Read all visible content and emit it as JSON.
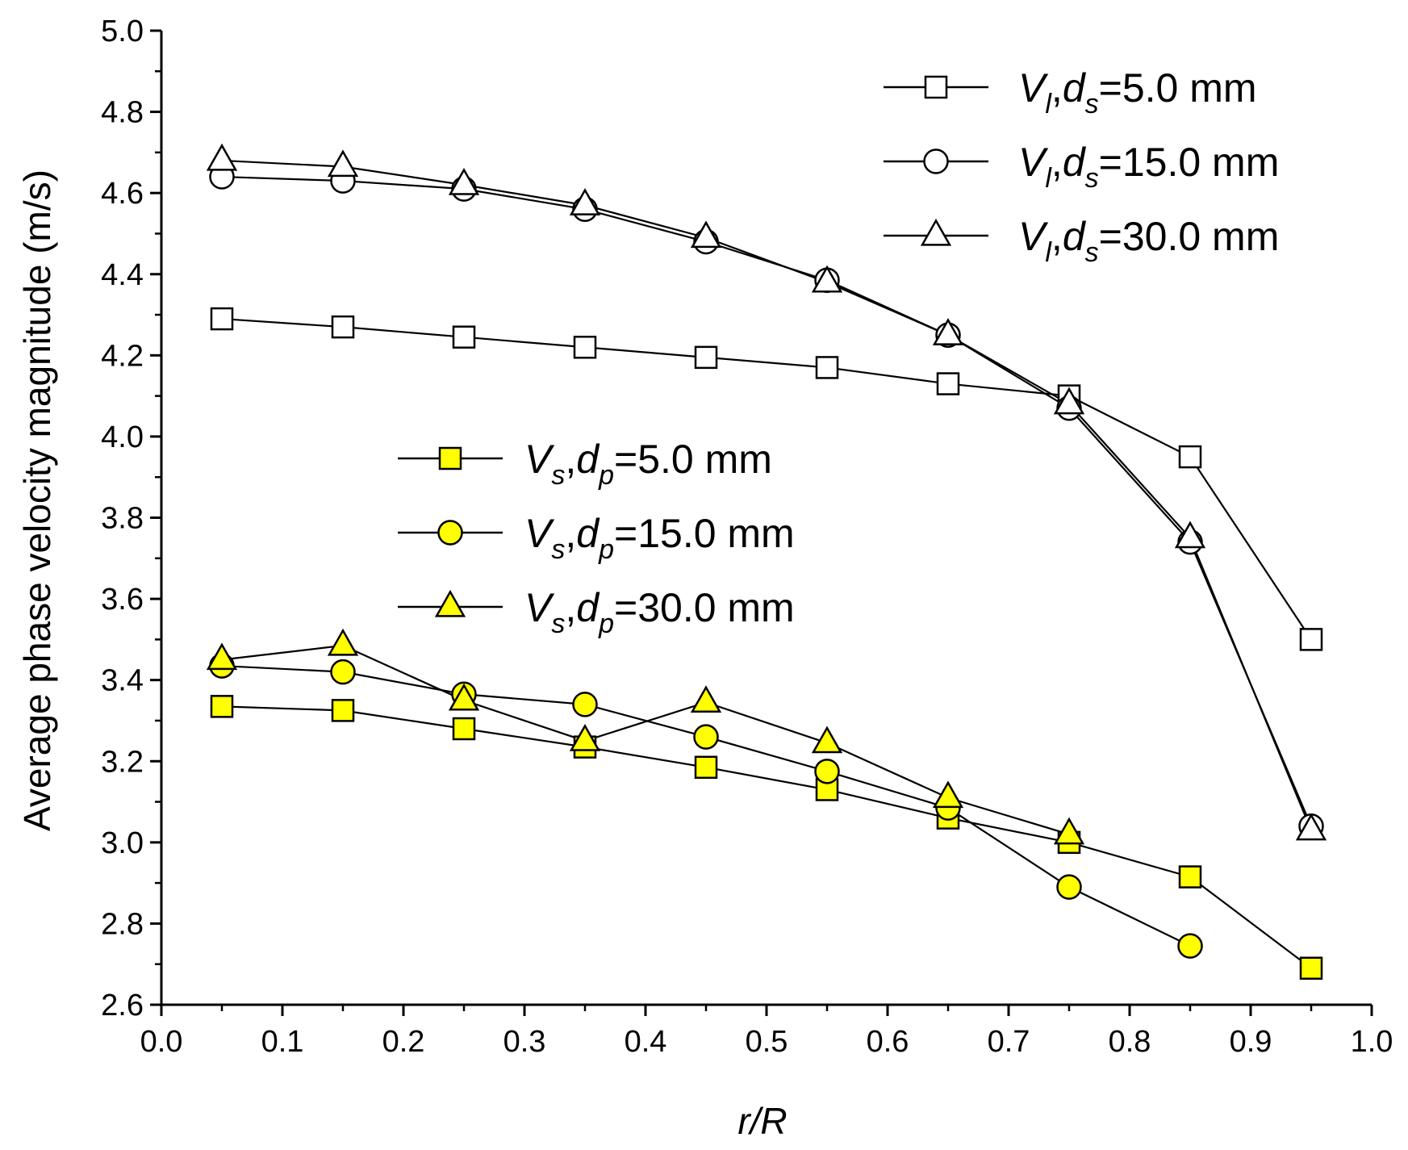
{
  "chart_data": {
    "type": "line",
    "xlabel": "r/R",
    "ylabel": "Average phase velocity magnitude (m/s)",
    "xlim": [
      0.0,
      1.0
    ],
    "ylim": [
      2.6,
      5.0
    ],
    "x_ticks": [
      "0.0",
      "0.1",
      "0.2",
      "0.3",
      "0.4",
      "0.5",
      "0.6",
      "0.7",
      "0.8",
      "0.9",
      "1.0"
    ],
    "y_ticks": [
      "2.6",
      "2.8",
      "3.0",
      "3.2",
      "3.4",
      "3.6",
      "3.8",
      "4.0",
      "4.2",
      "4.4",
      "4.6",
      "4.8",
      "5.0"
    ],
    "grid": false,
    "series": [
      {
        "name": "Vl,ds=5.0 mm",
        "label_var": "V",
        "label_var_sub": "l",
        "label_param": "d",
        "label_param_sub": "s",
        "label_value": "=5.0 mm",
        "legend": "top-right",
        "marker": "square",
        "fill": "#ffffff",
        "x": [
          0.05,
          0.15,
          0.25,
          0.35,
          0.45,
          0.55,
          0.65,
          0.75,
          0.85,
          0.95
        ],
        "y": [
          4.29,
          4.27,
          4.245,
          4.22,
          4.195,
          4.17,
          4.13,
          4.1,
          3.95,
          3.5
        ]
      },
      {
        "name": "Vl,ds=15.0 mm",
        "label_var": "V",
        "label_var_sub": "l",
        "label_param": "d",
        "label_param_sub": "s",
        "label_value": "=15.0 mm",
        "legend": "top-right",
        "marker": "circle",
        "fill": "#ffffff",
        "x": [
          0.05,
          0.15,
          0.25,
          0.35,
          0.45,
          0.55,
          0.65,
          0.75,
          0.85,
          0.95
        ],
        "y": [
          4.64,
          4.63,
          4.61,
          4.56,
          4.48,
          4.385,
          4.25,
          4.07,
          3.74,
          3.04
        ]
      },
      {
        "name": "Vl,ds=30.0 mm",
        "label_var": "V",
        "label_var_sub": "l",
        "label_param": "d",
        "label_param_sub": "s",
        "label_value": "=30.0 mm",
        "legend": "top-right",
        "marker": "triangle",
        "fill": "#ffffff",
        "x": [
          0.05,
          0.15,
          0.25,
          0.35,
          0.45,
          0.55,
          0.65,
          0.75,
          0.85,
          0.95
        ],
        "y": [
          4.68,
          4.665,
          4.62,
          4.57,
          4.49,
          4.38,
          4.25,
          4.08,
          3.75,
          3.03
        ]
      },
      {
        "name": "Vs,dp=5.0 mm",
        "label_var": "V",
        "label_var_sub": "s",
        "label_param": "d",
        "label_param_sub": "p",
        "label_value": "=5.0 mm",
        "legend": "center",
        "marker": "square",
        "fill": "#ffff00",
        "x": [
          0.05,
          0.15,
          0.25,
          0.35,
          0.45,
          0.55,
          0.65,
          0.75,
          0.85,
          0.95
        ],
        "y": [
          3.335,
          3.325,
          3.28,
          3.235,
          3.185,
          3.13,
          3.06,
          3.0,
          2.915,
          2.69
        ]
      },
      {
        "name": "Vs,dp=15.0 mm",
        "label_var": "V",
        "label_var_sub": "s",
        "label_param": "d",
        "label_param_sub": "p",
        "label_value": "=15.0 mm",
        "legend": "center",
        "marker": "circle",
        "fill": "#ffff00",
        "x": [
          0.05,
          0.15,
          0.25,
          0.35,
          0.45,
          0.55,
          0.65,
          0.75,
          0.85
        ],
        "y": [
          3.435,
          3.42,
          3.365,
          3.34,
          3.26,
          3.175,
          3.085,
          2.89,
          2.745
        ]
      },
      {
        "name": "Vs,dp=30.0 mm",
        "label_var": "V",
        "label_var_sub": "s",
        "label_param": "d",
        "label_param_sub": "p",
        "label_value": "=30.0 mm",
        "legend": "center",
        "marker": "triangle",
        "fill": "#ffff00",
        "x": [
          0.05,
          0.15,
          0.25,
          0.35,
          0.45,
          0.55,
          0.65,
          0.75
        ],
        "y": [
          3.45,
          3.485,
          3.35,
          3.25,
          3.345,
          3.245,
          3.11,
          3.02
        ]
      }
    ]
  }
}
